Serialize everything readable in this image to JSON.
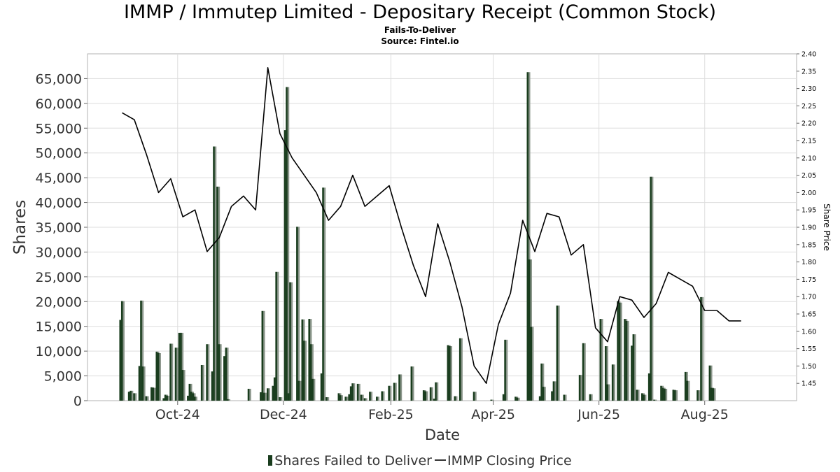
{
  "chart_data": {
    "title": "IMMP / Immutep Limited - Depositary Receipt (Common Stock)",
    "subtitle": "Fails-To-Deliver",
    "source": "Source: Fintel.io",
    "xlabel": "Date",
    "ylabel": "Shares",
    "y2label": "Share Price",
    "x_tick_labels": [
      "Oct-24",
      "Dec-24",
      "Feb-25",
      "Apr-25",
      "Jun-25",
      "Aug-25"
    ],
    "x_tick_dates": [
      "2024-10-01",
      "2024-12-01",
      "2025-02-01",
      "2025-04-01",
      "2025-06-01",
      "2025-08-01"
    ],
    "xlim": [
      "2024-08-10",
      "2025-09-23"
    ],
    "ylim": [
      0,
      70000
    ],
    "y_ticks": [
      0,
      5000,
      10000,
      15000,
      20000,
      25000,
      30000,
      35000,
      40000,
      45000,
      50000,
      55000,
      60000,
      65000
    ],
    "y_tick_labels": [
      "0",
      "5,000",
      "10,000",
      "15,000",
      "20,000",
      "25,000",
      "30,000",
      "35,000",
      "40,000",
      "45,000",
      "50,000",
      "55,000",
      "60,000",
      "65,000"
    ],
    "y2lim": [
      1.4,
      2.4
    ],
    "y2_ticks": [
      1.45,
      1.5,
      1.55,
      1.6,
      1.65,
      1.7,
      1.75,
      1.8,
      1.85,
      1.9,
      1.95,
      2.0,
      2.05,
      2.1,
      2.15,
      2.2,
      2.25,
      2.3,
      2.35,
      2.4
    ],
    "y2_tick_labels": [
      "1.45",
      "1.50",
      "1.55",
      "1.60",
      "1.65",
      "1.70",
      "1.75",
      "1.80",
      "1.85",
      "1.90",
      "1.95",
      "2.00",
      "2.05",
      "2.10",
      "2.15",
      "2.20",
      "2.25",
      "2.30",
      "2.35",
      "2.40"
    ],
    "grid": true,
    "legend_position": "bottom",
    "legend": [
      "Shares Failed to Deliver",
      "IMMP Closing Price"
    ],
    "colors": {
      "bar": "#1a3d1e",
      "bar_shadow": "#8a958a",
      "line": "#000000",
      "grid": "#dddddd"
    },
    "series": [
      {
        "name": "Shares Failed to Deliver",
        "type": "bar",
        "data": [
          [
            "2024-08-29",
            16300
          ],
          [
            "2024-08-30",
            20100
          ],
          [
            "2024-09-03",
            1800
          ],
          [
            "2024-09-04",
            2000
          ],
          [
            "2024-09-06",
            1500
          ],
          [
            "2024-09-09",
            7000
          ],
          [
            "2024-09-10",
            20200
          ],
          [
            "2024-09-11",
            6900
          ],
          [
            "2024-09-13",
            900
          ],
          [
            "2024-09-16",
            2700
          ],
          [
            "2024-09-17",
            2600
          ],
          [
            "2024-09-19",
            9900
          ],
          [
            "2024-09-20",
            9600
          ],
          [
            "2024-09-23",
            500
          ],
          [
            "2024-09-24",
            1200
          ],
          [
            "2024-09-25",
            1000
          ],
          [
            "2024-09-27",
            11500
          ],
          [
            "2024-09-30",
            10700
          ],
          [
            "2024-10-02",
            13700
          ],
          [
            "2024-10-03",
            13700
          ],
          [
            "2024-10-04",
            6200
          ],
          [
            "2024-10-07",
            1000
          ],
          [
            "2024-10-08",
            3400
          ],
          [
            "2024-10-09",
            1800
          ],
          [
            "2024-10-10",
            1500
          ],
          [
            "2024-10-11",
            800
          ],
          [
            "2024-10-15",
            7200
          ],
          [
            "2024-10-18",
            11400
          ],
          [
            "2024-10-21",
            5900
          ],
          [
            "2024-10-22",
            51300
          ],
          [
            "2024-10-24",
            43200
          ],
          [
            "2024-10-25",
            11400
          ],
          [
            "2024-10-28",
            9000
          ],
          [
            "2024-10-29",
            10700
          ],
          [
            "2024-10-30",
            300
          ],
          [
            "2024-11-11",
            2400
          ],
          [
            "2024-11-18",
            1700
          ],
          [
            "2024-11-19",
            18100
          ],
          [
            "2024-11-20",
            1600
          ],
          [
            "2024-11-22",
            2500
          ],
          [
            "2024-11-25",
            3000
          ],
          [
            "2024-11-26",
            4700
          ],
          [
            "2024-11-27",
            26000
          ],
          [
            "2024-11-29",
            700
          ],
          [
            "2024-12-02",
            54600
          ],
          [
            "2024-12-03",
            63300
          ],
          [
            "2024-12-04",
            1500
          ],
          [
            "2024-12-05",
            23900
          ],
          [
            "2024-12-09",
            35100
          ],
          [
            "2024-12-10",
            4000
          ],
          [
            "2024-12-12",
            16400
          ],
          [
            "2024-12-13",
            12100
          ],
          [
            "2024-12-16",
            16500
          ],
          [
            "2024-12-17",
            11400
          ],
          [
            "2024-12-18",
            4400
          ],
          [
            "2024-12-23",
            5500
          ],
          [
            "2024-12-24",
            43000
          ],
          [
            "2024-12-26",
            700
          ],
          [
            "2025-01-02",
            1500
          ],
          [
            "2025-01-03",
            1100
          ],
          [
            "2025-01-06",
            800
          ],
          [
            "2025-01-08",
            1300
          ],
          [
            "2025-01-09",
            2900
          ],
          [
            "2025-01-10",
            3500
          ],
          [
            "2025-01-13",
            3400
          ],
          [
            "2025-01-15",
            1200
          ],
          [
            "2025-01-17",
            500
          ],
          [
            "2025-01-20",
            1800
          ],
          [
            "2025-01-24",
            800
          ],
          [
            "2025-01-27",
            1900
          ],
          [
            "2025-01-31",
            3000
          ],
          [
            "2025-02-03",
            3600
          ],
          [
            "2025-02-06",
            5300
          ],
          [
            "2025-02-13",
            6900
          ],
          [
            "2025-02-20",
            2100
          ],
          [
            "2025-02-21",
            1900
          ],
          [
            "2025-02-24",
            2700
          ],
          [
            "2025-02-26",
            400
          ],
          [
            "2025-02-27",
            3700
          ],
          [
            "2025-03-06",
            11200
          ],
          [
            "2025-03-07",
            11000
          ],
          [
            "2025-03-10",
            900
          ],
          [
            "2025-03-13",
            12600
          ],
          [
            "2025-03-21",
            1800
          ],
          [
            "2025-03-31",
            200
          ],
          [
            "2025-04-07",
            1300
          ],
          [
            "2025-04-08",
            12300
          ],
          [
            "2025-04-14",
            800
          ],
          [
            "2025-04-15",
            600
          ],
          [
            "2025-04-21",
            66300
          ],
          [
            "2025-04-22",
            28500
          ],
          [
            "2025-04-23",
            14900
          ],
          [
            "2025-04-28",
            900
          ],
          [
            "2025-04-29",
            7500
          ],
          [
            "2025-04-30",
            2800
          ],
          [
            "2025-05-05",
            1900
          ],
          [
            "2025-05-06",
            3900
          ],
          [
            "2025-05-08",
            19200
          ],
          [
            "2025-05-12",
            1200
          ],
          [
            "2025-05-21",
            5200
          ],
          [
            "2025-05-23",
            11600
          ],
          [
            "2025-05-27",
            1300
          ],
          [
            "2025-06-02",
            16500
          ],
          [
            "2025-06-05",
            11000
          ],
          [
            "2025-06-06",
            3300
          ],
          [
            "2025-06-09",
            7300
          ],
          [
            "2025-06-12",
            20100
          ],
          [
            "2025-06-13",
            19800
          ],
          [
            "2025-06-16",
            16500
          ],
          [
            "2025-06-17",
            16100
          ],
          [
            "2025-06-20",
            11100
          ],
          [
            "2025-06-21",
            13400
          ],
          [
            "2025-06-23",
            2200
          ],
          [
            "2025-06-26",
            1500
          ],
          [
            "2025-06-27",
            1200
          ],
          [
            "2025-06-30",
            5500
          ],
          [
            "2025-07-01",
            45200
          ],
          [
            "2025-07-03",
            200
          ],
          [
            "2025-07-07",
            3000
          ],
          [
            "2025-07-08",
            2600
          ],
          [
            "2025-07-09",
            2400
          ],
          [
            "2025-07-14",
            2200
          ],
          [
            "2025-07-15",
            2100
          ],
          [
            "2025-07-21",
            5800
          ],
          [
            "2025-07-22",
            4000
          ],
          [
            "2025-07-28",
            2100
          ],
          [
            "2025-07-30",
            20900
          ],
          [
            "2025-08-04",
            7100
          ],
          [
            "2025-08-05",
            2600
          ],
          [
            "2025-08-06",
            2500
          ]
        ]
      },
      {
        "name": "IMMP Closing Price",
        "type": "line",
        "data": [
          [
            "2024-08-30",
            2.23
          ],
          [
            "2024-09-06",
            2.21
          ],
          [
            "2024-09-13",
            2.11
          ],
          [
            "2024-09-20",
            2.0
          ],
          [
            "2024-09-27",
            2.04
          ],
          [
            "2024-10-04",
            1.93
          ],
          [
            "2024-10-11",
            1.95
          ],
          [
            "2024-10-18",
            1.83
          ],
          [
            "2024-10-25",
            1.87
          ],
          [
            "2024-11-01",
            1.96
          ],
          [
            "2024-11-08",
            1.99
          ],
          [
            "2024-11-15",
            1.95
          ],
          [
            "2024-11-22",
            2.36
          ],
          [
            "2024-11-29",
            2.17
          ],
          [
            "2024-12-06",
            2.1
          ],
          [
            "2024-12-13",
            2.05
          ],
          [
            "2024-12-20",
            2.0
          ],
          [
            "2024-12-27",
            1.92
          ],
          [
            "2025-01-03",
            1.96
          ],
          [
            "2025-01-10",
            2.05
          ],
          [
            "2025-01-17",
            1.96
          ],
          [
            "2025-01-24",
            1.99
          ],
          [
            "2025-01-31",
            2.02
          ],
          [
            "2025-02-07",
            1.9
          ],
          [
            "2025-02-14",
            1.79
          ],
          [
            "2025-02-21",
            1.7
          ],
          [
            "2025-02-28",
            1.91
          ],
          [
            "2025-03-07",
            1.8
          ],
          [
            "2025-03-14",
            1.67
          ],
          [
            "2025-03-21",
            1.5
          ],
          [
            "2025-03-28",
            1.45
          ],
          [
            "2025-04-04",
            1.62
          ],
          [
            "2025-04-11",
            1.71
          ],
          [
            "2025-04-18",
            1.92
          ],
          [
            "2025-04-25",
            1.83
          ],
          [
            "2025-05-02",
            1.94
          ],
          [
            "2025-05-09",
            1.93
          ],
          [
            "2025-05-16",
            1.82
          ],
          [
            "2025-05-23",
            1.85
          ],
          [
            "2025-05-30",
            1.61
          ],
          [
            "2025-06-06",
            1.57
          ],
          [
            "2025-06-13",
            1.7
          ],
          [
            "2025-06-20",
            1.69
          ],
          [
            "2025-06-27",
            1.64
          ],
          [
            "2025-07-04",
            1.68
          ],
          [
            "2025-07-11",
            1.77
          ],
          [
            "2025-07-18",
            1.75
          ],
          [
            "2025-07-25",
            1.73
          ],
          [
            "2025-08-01",
            1.66
          ],
          [
            "2025-08-08",
            1.66
          ],
          [
            "2025-08-15",
            1.63
          ],
          [
            "2025-08-22",
            1.63
          ]
        ]
      }
    ]
  }
}
